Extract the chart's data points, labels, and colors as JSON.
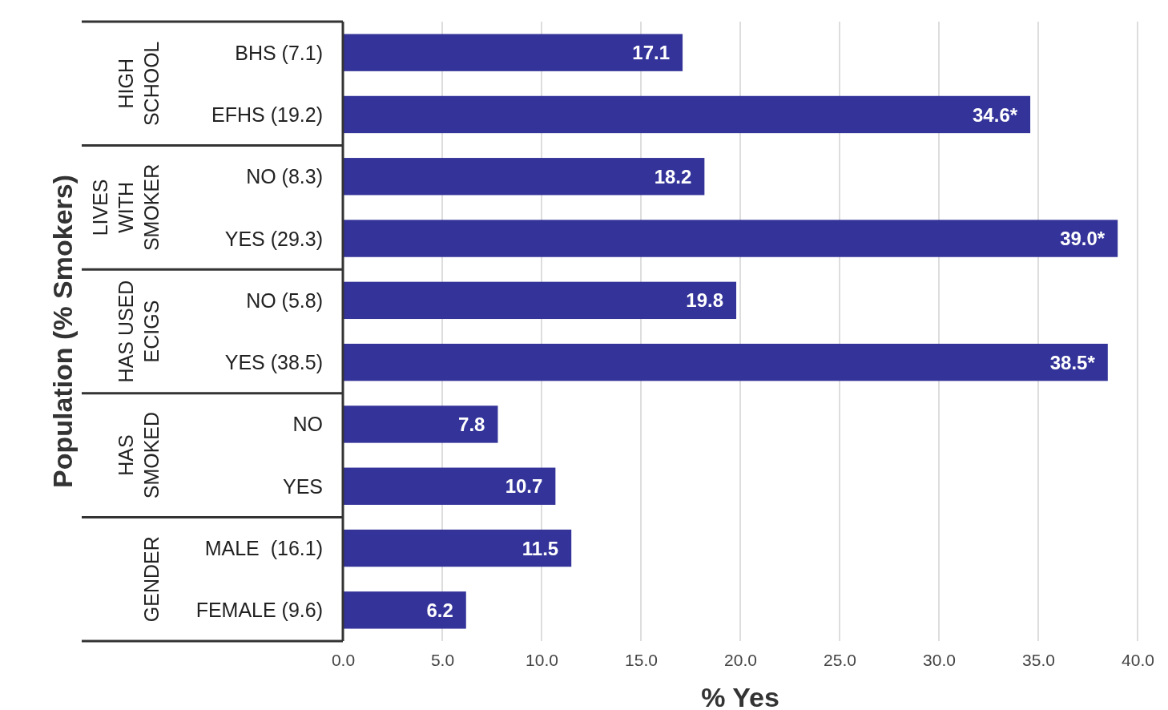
{
  "chart_data": {
    "type": "bar",
    "orientation": "horizontal",
    "xlabel": "% Yes",
    "ylabel": "Population (% Smokers)",
    "categories": [
      "BHS (7.1)",
      "EFHS (19.2)",
      "NO (8.3)",
      "YES (29.3)",
      "NO (5.8)",
      "YES (38.5)",
      "NO",
      "YES",
      "MALE  (16.1)",
      "FEMALE (9.6)"
    ],
    "values": [
      17.1,
      34.6,
      18.2,
      39.0,
      19.8,
      38.5,
      7.8,
      10.7,
      11.5,
      6.2
    ],
    "value_labels": [
      "17.1",
      "34.6*",
      "18.2",
      "39.0*",
      "19.8",
      "38.5*",
      "7.8",
      "10.7",
      "11.5",
      "6.2"
    ],
    "color": "#333399",
    "xlim": [
      0,
      40
    ],
    "xticks": [
      {
        "value": 0,
        "label": "0.0"
      },
      {
        "value": 5,
        "label": "5.0"
      },
      {
        "value": 10,
        "label": "10.0"
      },
      {
        "value": 15,
        "label": "15.0"
      },
      {
        "value": 20,
        "label": "20.0"
      },
      {
        "value": 25,
        "label": "25.0"
      },
      {
        "value": 30,
        "label": "30.0"
      },
      {
        "value": 35,
        "label": "35.0"
      },
      {
        "value": 40,
        "label": "40.0"
      }
    ],
    "grid": "x",
    "annotations": [
      "HIGH\nSCHOOL",
      "LIVES\nWITH\nSMOKER",
      "HAS USED\nECIGS",
      "HAS\nSMOKED",
      "GENDER"
    ]
  }
}
